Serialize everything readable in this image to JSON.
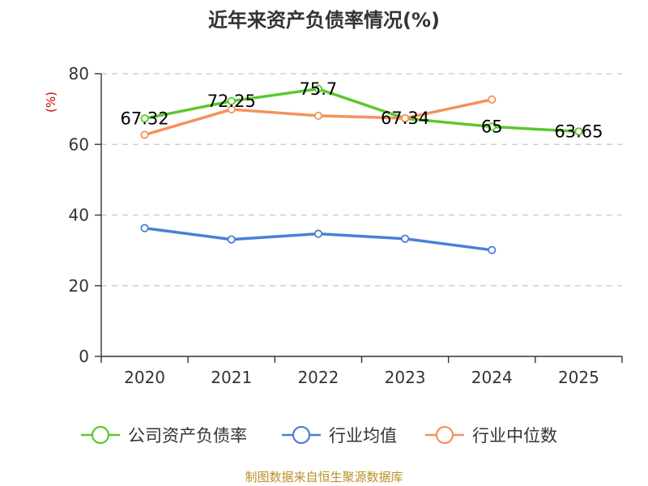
{
  "chart_data": {
    "type": "line",
    "title": "近年来资产负债率情况(%)",
    "ylabel": "(%)",
    "categories": [
      "2020",
      "2021",
      "2022",
      "2023",
      "2024",
      "2025"
    ],
    "ylim": [
      0,
      80
    ],
    "yticks": [
      0,
      20,
      40,
      60,
      80
    ],
    "grid": true,
    "legend_position": "bottom",
    "series": [
      {
        "name": "公司资产负债率",
        "color": "#5cc72c",
        "values": [
          67.32,
          72.25,
          75.7,
          67.34,
          65,
          63.65
        ],
        "labels": [
          "67.32",
          "72.25",
          "75.7",
          "67.34",
          "65",
          "63.65"
        ]
      },
      {
        "name": "行业均值",
        "color": "#4a7fd8",
        "values": [
          36.3,
          33.1,
          34.7,
          33.3,
          30.1,
          null
        ]
      },
      {
        "name": "行业中位数",
        "color": "#f5915c",
        "values": [
          62.7,
          69.9,
          68.1,
          67.4,
          72.7,
          null
        ]
      }
    ]
  },
  "source": "制图数据来自恒生聚源数据库"
}
